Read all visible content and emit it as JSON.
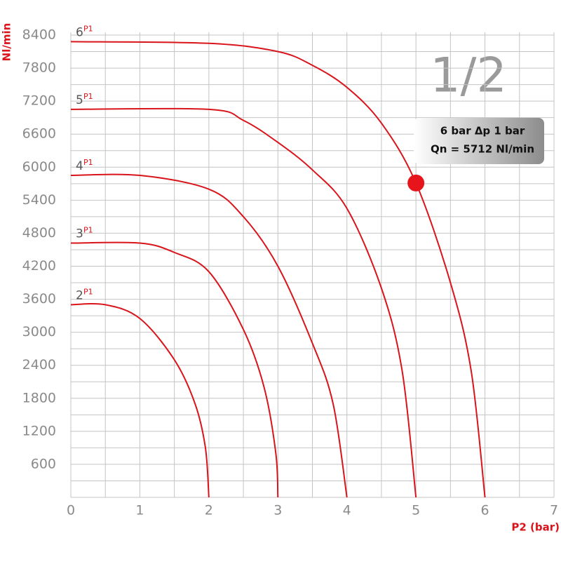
{
  "chart_data": {
    "type": "line",
    "big_label": "1/2",
    "y_label": "Nl/min",
    "x_label": "P2 (bar)",
    "series_label_suffix": "P1",
    "xlim": [
      0,
      7
    ],
    "xticks": [
      0,
      1,
      2,
      3,
      4,
      5,
      6,
      7
    ],
    "ylim": [
      0,
      8400
    ],
    "yticks": [
      600,
      1200,
      1800,
      2400,
      3000,
      3600,
      4200,
      4800,
      5400,
      6000,
      6600,
      7200,
      7800,
      8400
    ],
    "grid": true,
    "grid_step": [
      0.5,
      300
    ],
    "series": [
      {
        "name": "2",
        "color": "#d9141b",
        "x": [
          0,
          0.5,
          1,
          1.5,
          1.8,
          1.95,
          2
        ],
        "values": [
          3500,
          3500,
          3250,
          2500,
          1700,
          900,
          0
        ]
      },
      {
        "name": "3",
        "color": "#d9141b",
        "x": [
          0,
          1,
          1.5,
          2,
          2.5,
          2.8,
          2.97,
          3
        ],
        "values": [
          4620,
          4620,
          4450,
          4100,
          3050,
          2000,
          800,
          0
        ]
      },
      {
        "name": "4",
        "color": "#d9141b",
        "x": [
          0,
          1,
          2,
          2.5,
          3,
          3.5,
          3.8,
          4
        ],
        "values": [
          5850,
          5850,
          5600,
          5100,
          4200,
          2800,
          1700,
          0
        ]
      },
      {
        "name": "5",
        "color": "#d9141b",
        "x": [
          0,
          2,
          2.5,
          3,
          3.5,
          4,
          4.5,
          4.8,
          5
        ],
        "values": [
          7050,
          7050,
          6850,
          6450,
          5950,
          5250,
          3800,
          2300,
          0
        ]
      },
      {
        "name": "6",
        "color": "#d9141b",
        "x": [
          0,
          2,
          3,
          3.5,
          4,
          4.5,
          5,
          5.5,
          5.8,
          6
        ],
        "values": [
          8280,
          8250,
          8100,
          7850,
          7450,
          6800,
          5712,
          3900,
          2300,
          0
        ]
      }
    ],
    "highlight": {
      "x": 5,
      "value": 5712,
      "color": "#e8141c",
      "lines": [
        "6 bar Δp 1 bar",
        "Qn = 5712 Nl/min"
      ]
    }
  }
}
